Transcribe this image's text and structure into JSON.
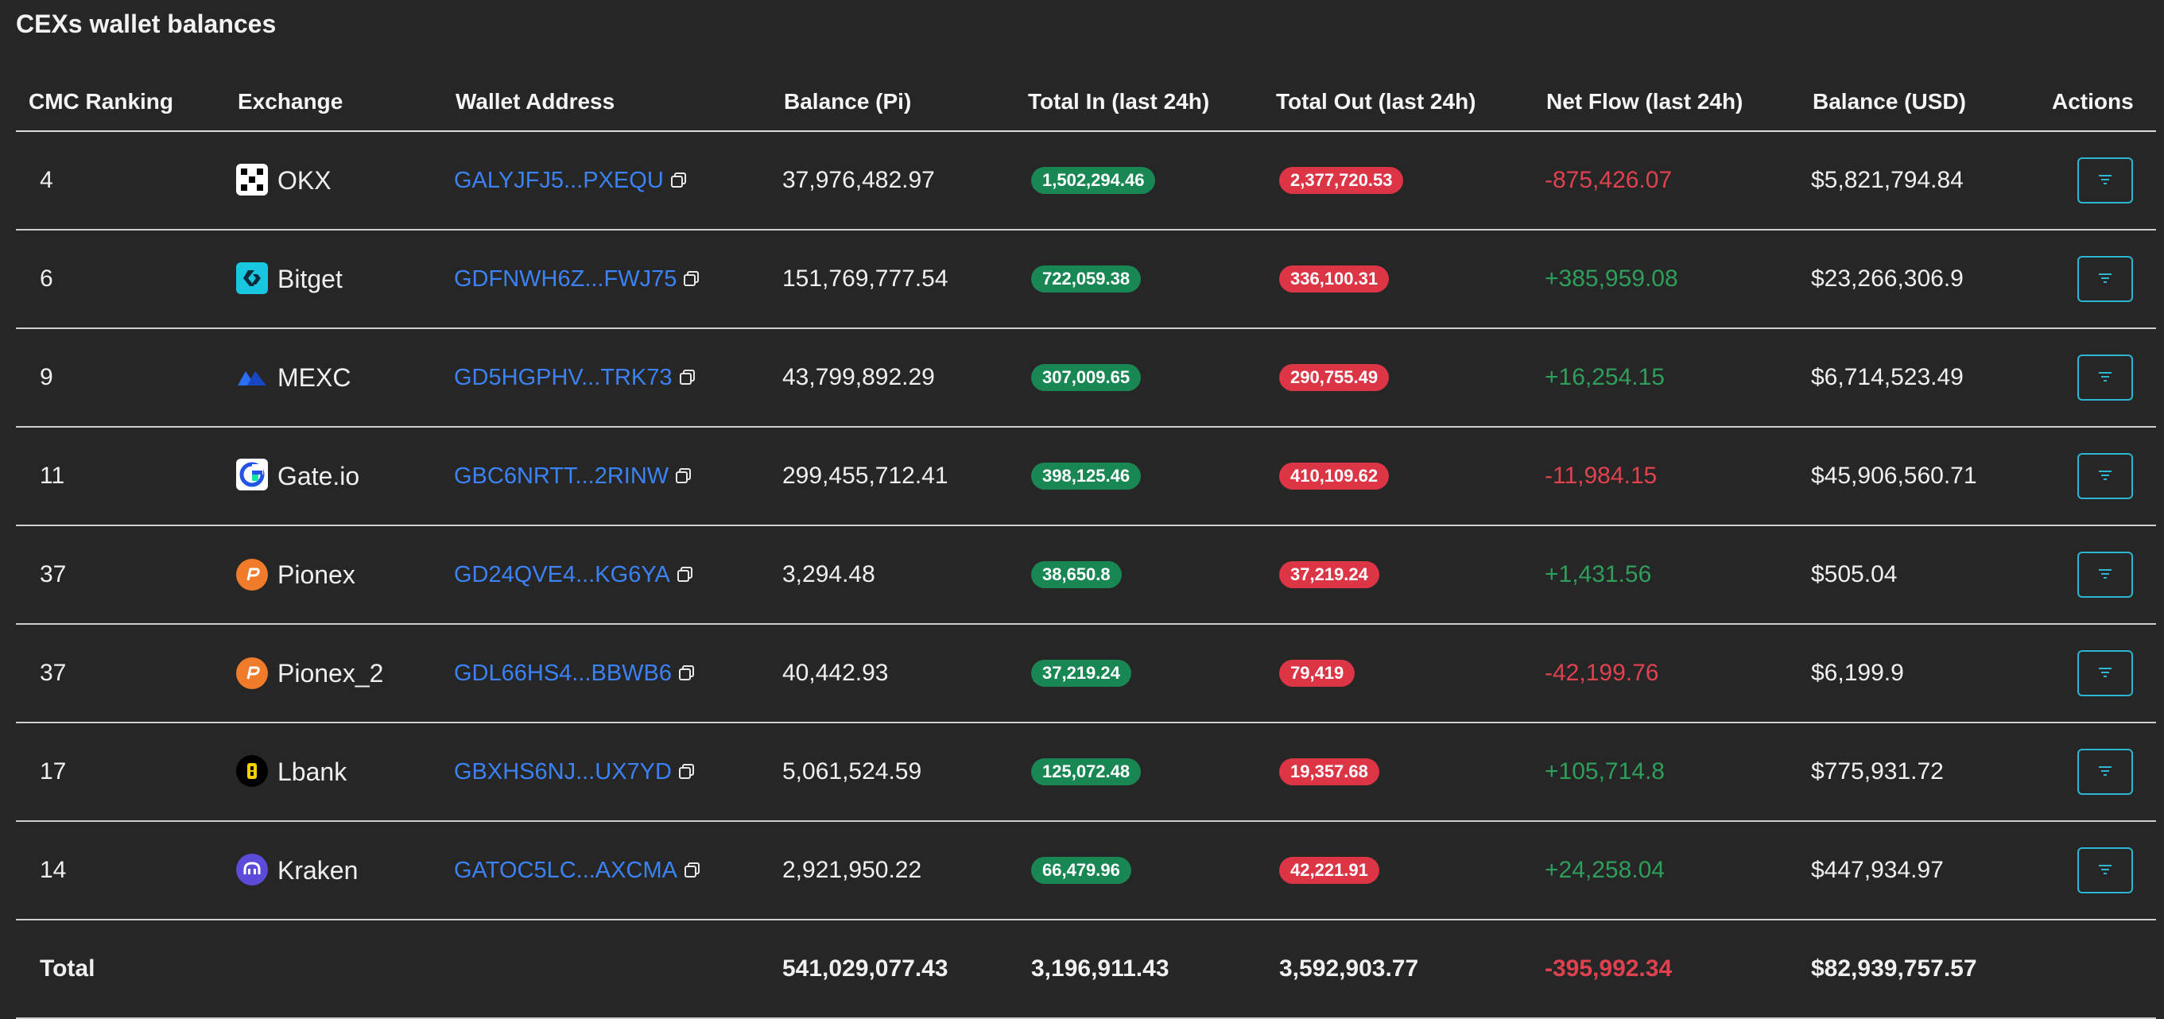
{
  "title": "CEXs wallet balances",
  "columns": [
    "CMC Ranking",
    "Exchange",
    "Wallet Address",
    "Balance (Pi)",
    "Total In (last 24h)",
    "Total Out (last 24h)",
    "Net Flow (last 24h)",
    "Balance (USD)",
    "Actions"
  ],
  "rows": [
    {
      "rank": "4",
      "exchange": "OKX",
      "logo": "okx-icon",
      "address": "GALYJFJ5...PXEQU",
      "balance": "37,976,482.97",
      "total_in": "1,502,294.46",
      "total_out": "2,377,720.53",
      "net": "-875,426.07",
      "net_sign": "neg",
      "usd": "$5,821,794.84"
    },
    {
      "rank": "6",
      "exchange": "Bitget",
      "logo": "bitget-icon",
      "address": "GDFNWH6Z...FWJ75",
      "balance": "151,769,777.54",
      "total_in": "722,059.38",
      "total_out": "336,100.31",
      "net": "+385,959.08",
      "net_sign": "pos",
      "usd": "$23,266,306.9"
    },
    {
      "rank": "9",
      "exchange": "MEXC",
      "logo": "mexc-icon",
      "address": "GD5HGPHV...TRK73",
      "balance": "43,799,892.29",
      "total_in": "307,009.65",
      "total_out": "290,755.49",
      "net": "+16,254.15",
      "net_sign": "pos",
      "usd": "$6,714,523.49"
    },
    {
      "rank": "11",
      "exchange": "Gate.io",
      "logo": "gateio-icon",
      "address": "GBC6NRTT...2RINW",
      "balance": "299,455,712.41",
      "total_in": "398,125.46",
      "total_out": "410,109.62",
      "net": "-11,984.15",
      "net_sign": "neg",
      "usd": "$45,906,560.71"
    },
    {
      "rank": "37",
      "exchange": "Pionex",
      "logo": "pionex-icon",
      "address": "GD24QVE4...KG6YA",
      "balance": "3,294.48",
      "total_in": "38,650.8",
      "total_out": "37,219.24",
      "net": "+1,431.56",
      "net_sign": "pos",
      "usd": "$505.04"
    },
    {
      "rank": "37",
      "exchange": "Pionex_2",
      "logo": "pionex-icon",
      "address": "GDL66HS4...BBWB6",
      "balance": "40,442.93",
      "total_in": "37,219.24",
      "total_out": "79,419",
      "net": "-42,199.76",
      "net_sign": "neg",
      "usd": "$6,199.9"
    },
    {
      "rank": "17",
      "exchange": "Lbank",
      "logo": "lbank-icon",
      "address": "GBXHS6NJ...UX7YD",
      "balance": "5,061,524.59",
      "total_in": "125,072.48",
      "total_out": "19,357.68",
      "net": "+105,714.8",
      "net_sign": "pos",
      "usd": "$775,931.72"
    },
    {
      "rank": "14",
      "exchange": "Kraken",
      "logo": "kraken-icon",
      "address": "GATOC5LC...AXCMA",
      "balance": "2,921,950.22",
      "total_in": "66,479.96",
      "total_out": "42,221.91",
      "net": "+24,258.04",
      "net_sign": "pos",
      "usd": "$447,934.97"
    }
  ],
  "total": {
    "label": "Total",
    "balance": "541,029,077.43",
    "total_in": "3,196,911.43",
    "total_out": "3,592,903.77",
    "net": "-395,992.34",
    "usd": "$82,939,757.57"
  },
  "colors": {
    "background": "#262626",
    "link": "#3b82f6",
    "in_badge": "#198754",
    "out_badge": "#dc3545",
    "positive": "#2e9e5b",
    "negative": "#e0414f",
    "action_border": "#2cb6d0"
  },
  "icons": {
    "copy": "copy-icon",
    "action": "filter-icon"
  }
}
